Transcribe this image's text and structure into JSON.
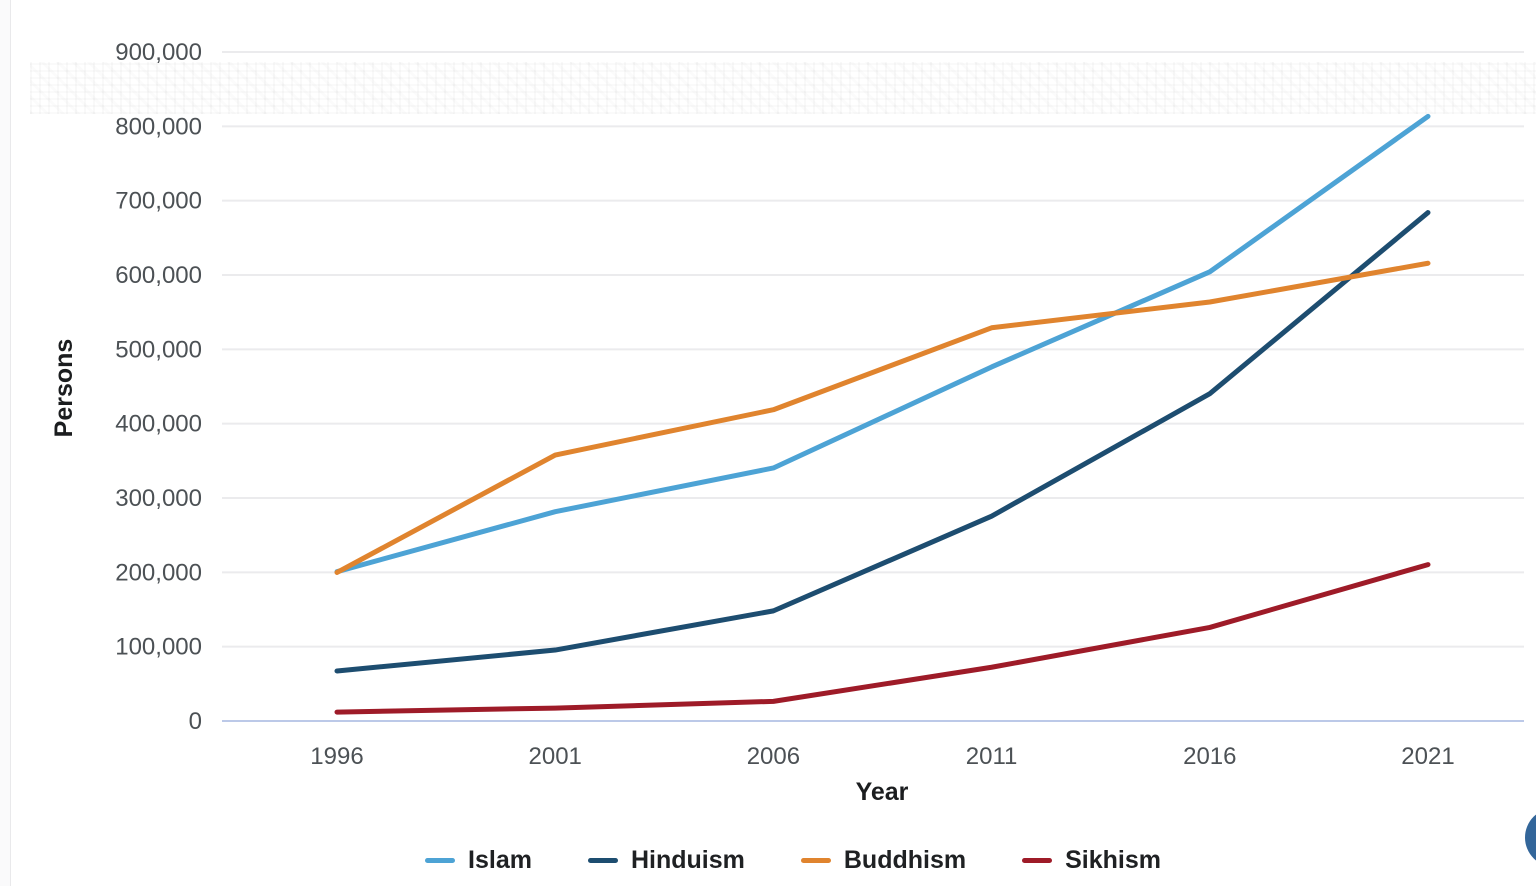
{
  "page": {
    "fab_color": "#33669A"
  },
  "chart_data": {
    "type": "line",
    "title": "",
    "xlabel": "Year",
    "ylabel": "Persons",
    "x": [
      1996,
      2001,
      2006,
      2011,
      2016,
      2021
    ],
    "x_tick_labels": [
      "1996",
      "2001",
      "2006",
      "2011",
      "2016",
      "2021"
    ],
    "ylim": [
      0,
      900000
    ],
    "ytick_step": 100000,
    "ytick_labels": [
      "0",
      "100,000",
      "200,000",
      "300,000",
      "400,000",
      "500,000",
      "600,000",
      "700,000",
      "800,000",
      "900,000"
    ],
    "grid": "horizontal-only",
    "legend_position": "bottom",
    "series": [
      {
        "name": "Islam",
        "color": "#4DA3D5",
        "values": [
          200885,
          281578,
          340392,
          476291,
          604240,
          813392
        ]
      },
      {
        "name": "Hinduism",
        "color": "#1D4D70",
        "values": [
          67279,
          95473,
          148130,
          275534,
          440300,
          684002
        ]
      },
      {
        "name": "Buddhism",
        "color": "#E0842E",
        "values": [
          199812,
          357813,
          418756,
          528977,
          563674,
          615823
        ]
      },
      {
        "name": "Sikhism",
        "color": "#9E1B28",
        "values": [
          12017,
          17401,
          26429,
          72296,
          125901,
          210400
        ]
      }
    ]
  }
}
